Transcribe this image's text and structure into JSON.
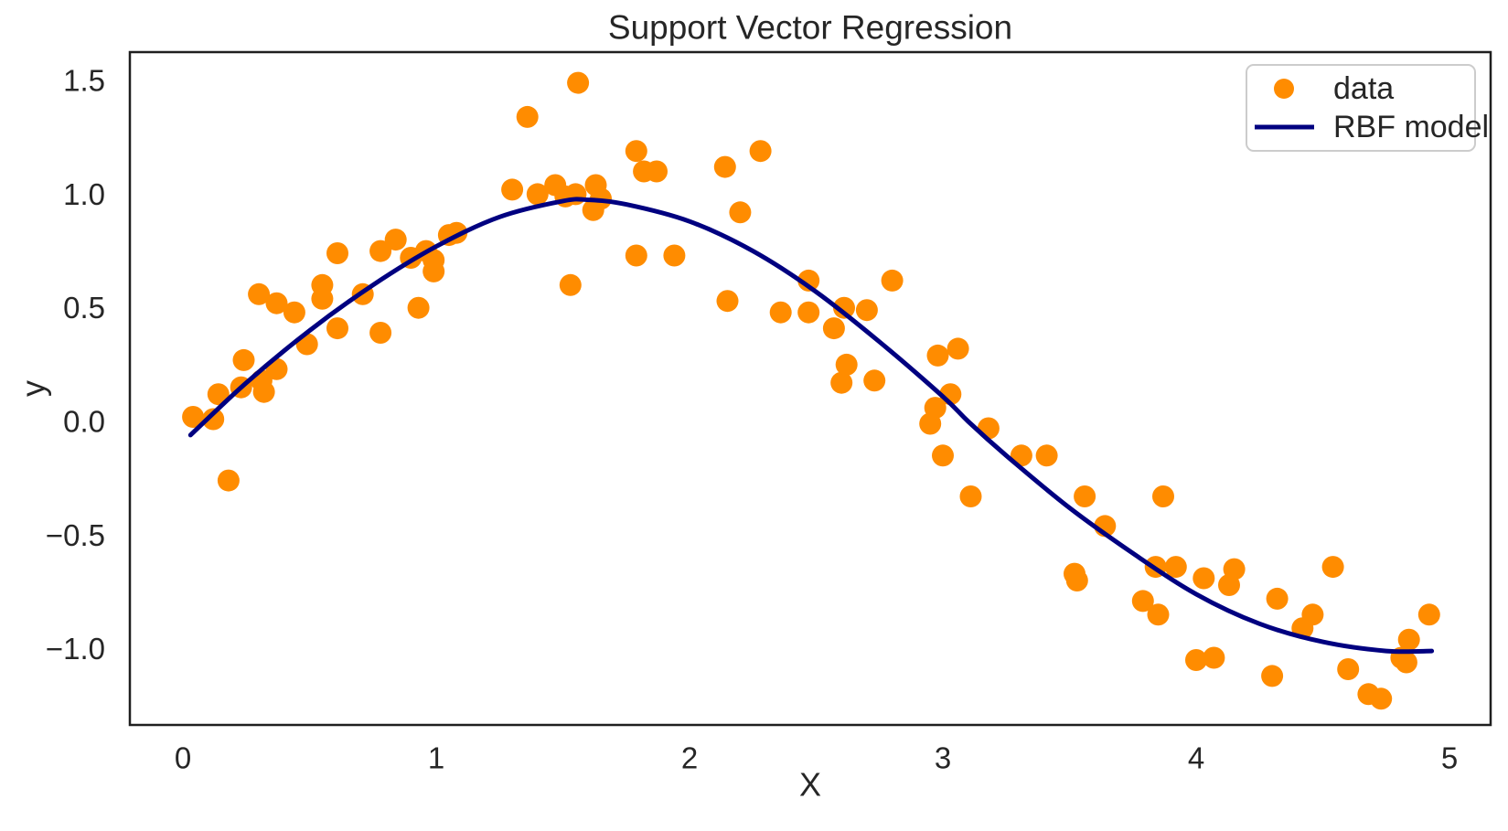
{
  "figure": {
    "background": "#ffffff",
    "frame_color": "#1f1f1f"
  },
  "chart_data": {
    "type": "scatter",
    "title": "Support Vector Regression",
    "xlabel": "X",
    "ylabel": "y",
    "xlim": [
      -0.21,
      5.16
    ],
    "ylim": [
      -1.34,
      1.63
    ],
    "grid": false,
    "xticks": {
      "values": [
        0,
        1,
        2,
        3,
        4,
        5
      ],
      "labels": [
        "0",
        "1",
        "2",
        "3",
        "4",
        "5"
      ]
    },
    "yticks": {
      "values": [
        -1.0,
        -0.5,
        0.0,
        0.5,
        1.0,
        1.5
      ],
      "labels": [
        "−1.0",
        "−0.5",
        "0.0",
        "0.5",
        "1.0",
        "1.5"
      ]
    },
    "legend": {
      "position": "upper right",
      "entries": [
        {
          "label": "data",
          "type": "marker",
          "color": "#ff8c00"
        },
        {
          "label": "RBF model",
          "type": "line",
          "color": "#000080"
        }
      ]
    },
    "series": [
      {
        "name": "data",
        "type": "scatter",
        "color": "#ff8c00",
        "marker_radius": 12,
        "points": [
          [
            0.04,
            0.02
          ],
          [
            0.12,
            0.01
          ],
          [
            0.14,
            0.12
          ],
          [
            0.18,
            -0.26
          ],
          [
            0.23,
            0.15
          ],
          [
            0.24,
            0.27
          ],
          [
            0.3,
            0.56
          ],
          [
            0.31,
            0.18
          ],
          [
            0.32,
            0.13
          ],
          [
            0.37,
            0.52
          ],
          [
            0.37,
            0.23
          ],
          [
            0.44,
            0.48
          ],
          [
            0.49,
            0.34
          ],
          [
            0.55,
            0.6
          ],
          [
            0.55,
            0.54
          ],
          [
            0.61,
            0.74
          ],
          [
            0.61,
            0.41
          ],
          [
            0.71,
            0.56
          ],
          [
            0.78,
            0.75
          ],
          [
            0.78,
            0.39
          ],
          [
            0.84,
            0.8
          ],
          [
            0.9,
            0.72
          ],
          [
            0.93,
            0.5
          ],
          [
            0.96,
            0.75
          ],
          [
            0.99,
            0.71
          ],
          [
            0.99,
            0.66
          ],
          [
            1.05,
            0.82
          ],
          [
            1.08,
            0.83
          ],
          [
            1.3,
            1.02
          ],
          [
            1.36,
            1.34
          ],
          [
            1.4,
            1.0
          ],
          [
            1.47,
            1.04
          ],
          [
            1.51,
            0.99
          ],
          [
            1.53,
            0.6
          ],
          [
            1.55,
            1.0
          ],
          [
            1.56,
            1.49
          ],
          [
            1.62,
            0.93
          ],
          [
            1.63,
            1.04
          ],
          [
            1.65,
            0.98
          ],
          [
            1.79,
            1.19
          ],
          [
            1.79,
            0.73
          ],
          [
            1.82,
            1.1
          ],
          [
            1.87,
            1.1
          ],
          [
            1.94,
            0.73
          ],
          [
            2.14,
            1.12
          ],
          [
            2.15,
            0.53
          ],
          [
            2.2,
            0.92
          ],
          [
            2.28,
            1.19
          ],
          [
            2.36,
            0.48
          ],
          [
            2.47,
            0.62
          ],
          [
            2.47,
            0.48
          ],
          [
            2.57,
            0.41
          ],
          [
            2.6,
            0.17
          ],
          [
            2.61,
            0.5
          ],
          [
            2.62,
            0.25
          ],
          [
            2.7,
            0.49
          ],
          [
            2.73,
            0.18
          ],
          [
            2.8,
            0.62
          ],
          [
            2.95,
            -0.01
          ],
          [
            2.97,
            0.06
          ],
          [
            2.98,
            0.29
          ],
          [
            3.0,
            -0.15
          ],
          [
            3.03,
            0.12
          ],
          [
            3.06,
            0.32
          ],
          [
            3.11,
            -0.33
          ],
          [
            3.18,
            -0.03
          ],
          [
            3.31,
            -0.15
          ],
          [
            3.41,
            -0.15
          ],
          [
            3.52,
            -0.67
          ],
          [
            3.53,
            -0.7
          ],
          [
            3.56,
            -0.33
          ],
          [
            3.64,
            -0.46
          ],
          [
            3.79,
            -0.79
          ],
          [
            3.84,
            -0.64
          ],
          [
            3.85,
            -0.85
          ],
          [
            3.87,
            -0.33
          ],
          [
            3.92,
            -0.64
          ],
          [
            4.0,
            -1.05
          ],
          [
            4.03,
            -0.69
          ],
          [
            4.07,
            -1.04
          ],
          [
            4.13,
            -0.72
          ],
          [
            4.15,
            -0.65
          ],
          [
            4.3,
            -1.12
          ],
          [
            4.32,
            -0.78
          ],
          [
            4.42,
            -0.91
          ],
          [
            4.46,
            -0.85
          ],
          [
            4.54,
            -0.64
          ],
          [
            4.6,
            -1.09
          ],
          [
            4.68,
            -1.2
          ],
          [
            4.73,
            -1.22
          ],
          [
            4.81,
            -1.04
          ],
          [
            4.83,
            -1.06
          ],
          [
            4.84,
            -0.96
          ],
          [
            4.92,
            -0.85
          ]
        ]
      },
      {
        "name": "RBF model",
        "type": "line",
        "color": "#000080",
        "line_width": 5,
        "points": [
          [
            0.03,
            -0.06
          ],
          [
            0.25,
            0.17
          ],
          [
            0.5,
            0.4
          ],
          [
            0.75,
            0.6
          ],
          [
            1.0,
            0.77
          ],
          [
            1.25,
            0.9
          ],
          [
            1.5,
            0.97
          ],
          [
            1.6,
            0.975
          ],
          [
            1.75,
            0.955
          ],
          [
            2.0,
            0.88
          ],
          [
            2.25,
            0.75
          ],
          [
            2.5,
            0.57
          ],
          [
            2.75,
            0.35
          ],
          [
            3.0,
            0.11
          ],
          [
            3.1,
            0.0
          ],
          [
            3.25,
            -0.15
          ],
          [
            3.5,
            -0.38
          ],
          [
            3.75,
            -0.58
          ],
          [
            4.0,
            -0.76
          ],
          [
            4.25,
            -0.89
          ],
          [
            4.5,
            -0.97
          ],
          [
            4.75,
            -1.01
          ],
          [
            4.93,
            -1.01
          ]
        ]
      }
    ]
  }
}
